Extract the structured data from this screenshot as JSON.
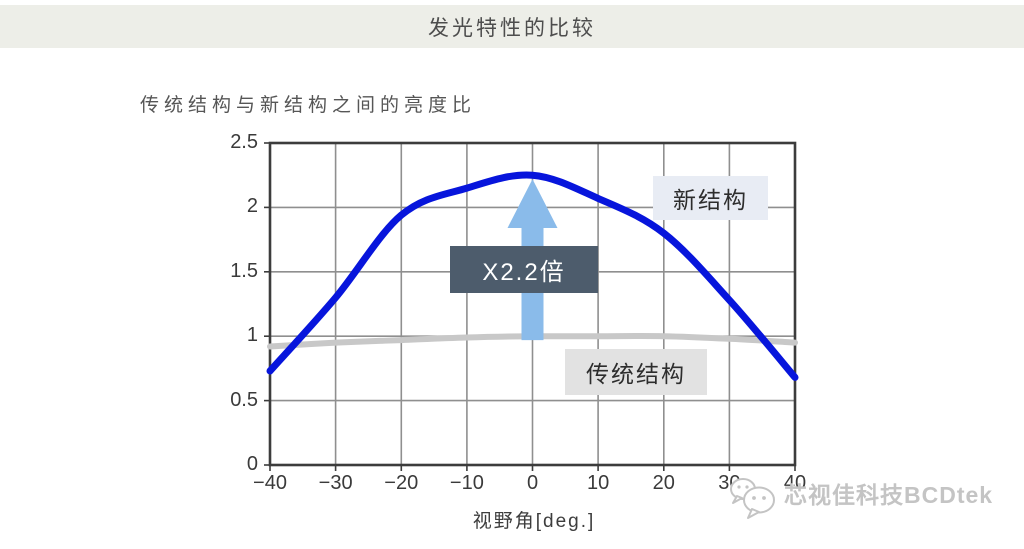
{
  "header": {
    "title": "发光特性的比较"
  },
  "subtitle": "传统结构与新结构之间的亮度比",
  "chart_data": {
    "type": "line",
    "title": "传统结构与新结构之间的亮度比",
    "xlabel": "视野角[deg.]",
    "ylabel": "",
    "xlim": [
      -40,
      40
    ],
    "ylim": [
      0,
      2.5
    ],
    "grid": true,
    "x_ticks": [
      -40,
      -30,
      -20,
      -10,
      0,
      10,
      20,
      30,
      40
    ],
    "x_tick_labels": [
      "−40",
      "−30",
      "−20",
      "−10",
      "0",
      "10",
      "20",
      "30",
      "40"
    ],
    "y_ticks": [
      0,
      0.5,
      1,
      1.5,
      2,
      2.5
    ],
    "y_tick_labels": [
      "0",
      "0.5",
      "1",
      "1.5",
      "2",
      "2.5"
    ],
    "x": [
      -40,
      -30,
      -20,
      -10,
      0,
      10,
      20,
      30,
      40
    ],
    "series": [
      {
        "name": "新结构",
        "color": "#0715dc",
        "stroke_width": 7,
        "values": [
          0.73,
          1.3,
          1.94,
          2.15,
          2.25,
          2.07,
          1.8,
          1.28,
          0.68
        ]
      },
      {
        "name": "传统结构",
        "color": "#c8c8c8",
        "stroke_width": 6,
        "values": [
          0.92,
          0.95,
          0.97,
          0.99,
          1.0,
          1.0,
          1.0,
          0.98,
          0.95
        ]
      }
    ],
    "annotations": {
      "series_label_new": "新结构",
      "series_label_old": "传统结构",
      "multiplier": "X2.2倍",
      "arrow": {
        "color": "#8abbea",
        "x": 0,
        "from": 0.97,
        "to": 2.22,
        "head_base": 1.84
      }
    },
    "legend": "in-plot boxed labels"
  },
  "watermark": {
    "logo": "wechat-icon",
    "text": "芯视佳科技BCDtek"
  },
  "colors": {
    "titlebar_bg": "#edeee8",
    "grid": "#8f8f8f",
    "frame": "#3c3c3c",
    "curve_new": "#0715dc",
    "curve_old": "#c8c8c8",
    "arrow": "#8abbea",
    "box_dark": "#4d5c6c",
    "box_light_blue": "#e8ecf4",
    "box_light_gray": "#e2e2e2"
  }
}
